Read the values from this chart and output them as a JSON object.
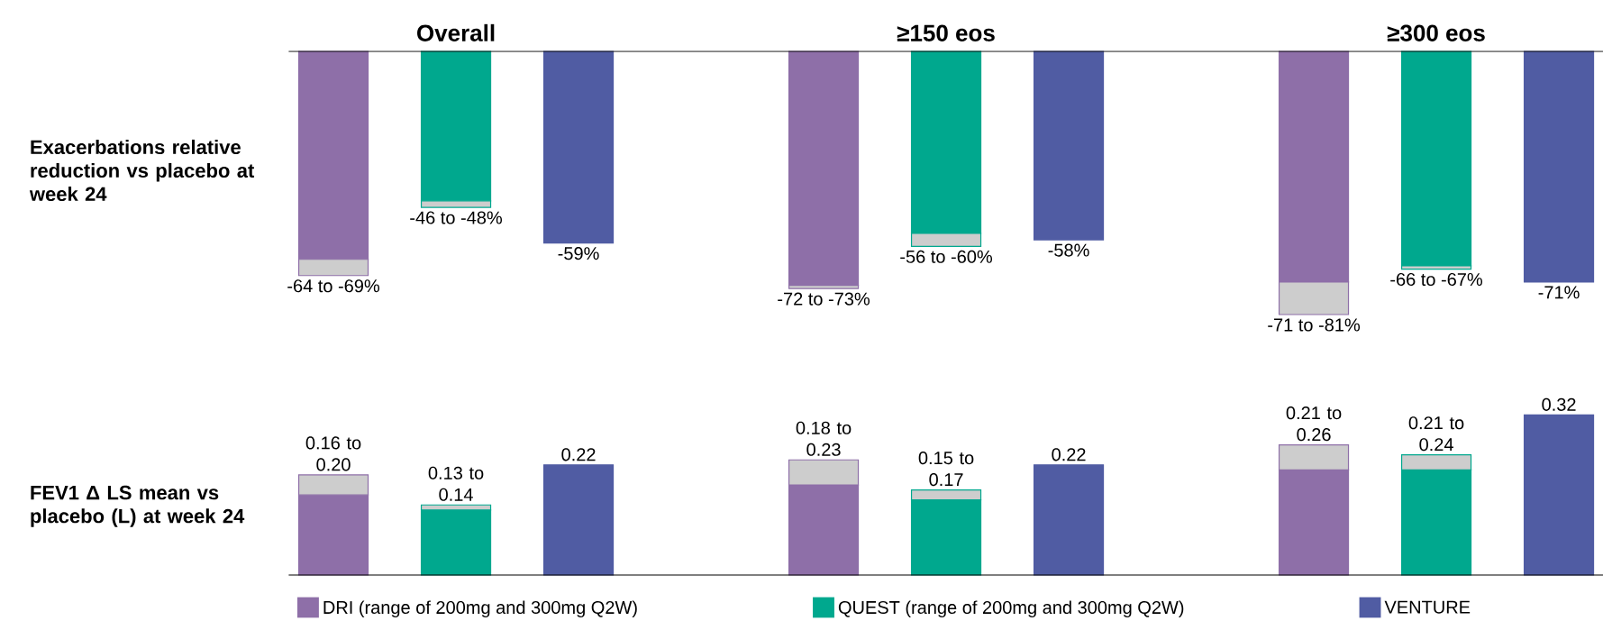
{
  "chart_data": [
    {
      "type": "bar",
      "stacked": true,
      "categories": [
        null,
        "Overall",
        null,
        null,
        null,
        "≥150 eos",
        null,
        null,
        null,
        "≥300 eos",
        null
      ],
      "ylabel": "Exacerbations relative reduction vs placebo at week 24",
      "tick_labels": "x",
      "series": [
        {
          "color": "#8e6fa8",
          "values": [
            -64,
            null,
            null,
            null,
            -72,
            null,
            null,
            null,
            -71,
            null,
            null
          ],
          "value_labels": [
            "-64 to -69%",
            null,
            null,
            null,
            "-72 to -73%",
            null,
            null,
            null,
            "-71 to -81%",
            null,
            null
          ]
        },
        {
          "color": "#00a88e",
          "values": [
            null,
            -46,
            null,
            null,
            null,
            -56,
            null,
            null,
            null,
            -66,
            null
          ],
          "value_labels": [
            null,
            "-46 to -48%",
            null,
            null,
            null,
            "-56 to -60%",
            null,
            null,
            null,
            "-66 to -67%",
            null
          ]
        },
        {
          "color": "#505ca3",
          "values": [
            null,
            null,
            -59,
            null,
            null,
            null,
            -58,
            null,
            null,
            null,
            -71
          ],
          "value_labels": [
            null,
            null,
            "-59%",
            null,
            null,
            null,
            "-58%",
            null,
            null,
            null,
            "-71%"
          ]
        },
        {
          "color": "#cdcdcd",
          "values": [
            -5,
            -2,
            null,
            null,
            -1,
            -4,
            null,
            null,
            -10,
            -1,
            null
          ]
        }
      ]
    },
    {
      "type": "bar",
      "stacked": true,
      "categories": [
        null,
        null,
        null,
        null,
        null,
        null,
        null,
        null,
        null,
        null,
        null
      ],
      "ylabel": "FEV1 Δ LS mean vs placebo (L) at week 24",
      "tick_labels": false,
      "legend": "bottom",
      "series": [
        {
          "name": "DRI (range of 200mg and 300mg Q2W)",
          "color": "#8e6fa8",
          "values": [
            0.16,
            null,
            null,
            null,
            0.18,
            null,
            null,
            null,
            0.21,
            null,
            null
          ],
          "value_labels": [
            "0.16 to 0.20",
            null,
            null,
            null,
            "0.18 to 0.23",
            null,
            null,
            null,
            "0.21 to 0.26",
            null,
            null
          ]
        },
        {
          "name": "QUEST (range of 200mg and 300mg Q2W)",
          "color": "#00a88e",
          "values": [
            null,
            0.13,
            null,
            null,
            null,
            0.15,
            null,
            null,
            null,
            0.21,
            null
          ],
          "value_labels": [
            null,
            "0.13 to 0.14",
            null,
            null,
            null,
            "0.15 to 0.17",
            null,
            null,
            null,
            "0.21 to 0.24",
            null
          ]
        },
        {
          "name": "VENTURE",
          "color": "#505ca3",
          "values": [
            null,
            null,
            0.22,
            null,
            null,
            null,
            0.22,
            null,
            null,
            null,
            0.32
          ],
          "value_labels": [
            null,
            null,
            "0.22",
            null,
            null,
            null,
            "0.22",
            null,
            null,
            null,
            "0.32"
          ]
        },
        {
          "color": "#cdcdcd",
          "values": [
            0.04,
            0.01,
            null,
            null,
            0.05,
            0.02,
            null,
            null,
            0.05,
            0.03,
            null
          ]
        }
      ]
    }
  ]
}
